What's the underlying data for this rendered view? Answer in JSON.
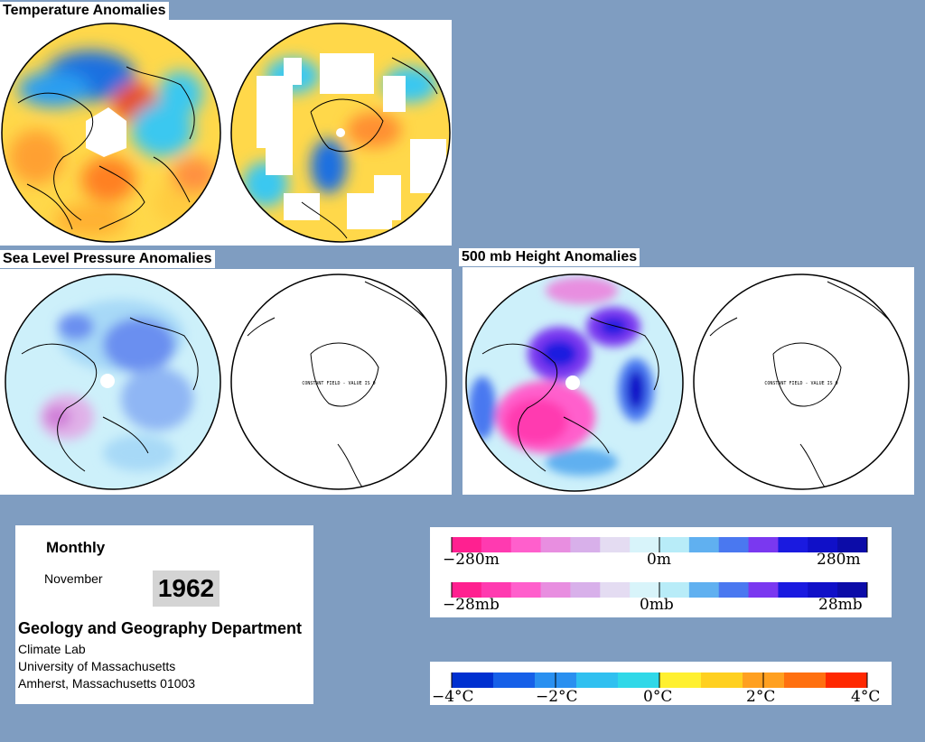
{
  "sections": {
    "temperature": {
      "title": "Temperature Anomalies"
    },
    "slp": {
      "title": "Sea Level Pressure Anomalies",
      "south_label": "CONSTANT FIELD - VALUE IS 0"
    },
    "height500": {
      "title": "500 mb Height Anomalies",
      "south_label": "CONSTANT FIELD - VALUE IS 0"
    }
  },
  "info": {
    "period": "Monthly",
    "month": "November",
    "year": "1962",
    "department": "Geology and Geography Department",
    "lab": "Climate Lab",
    "university": "University of Massachusetts",
    "address": "Amherst, Massachusetts 01003"
  },
  "legend_height": {
    "labels": [
      "−280m",
      "0m",
      "280m"
    ],
    "colors": [
      "#ff2090",
      "#ff3ab0",
      "#ff5fcc",
      "#e88ee0",
      "#d8b0ea",
      "#e4dcf2",
      "#d8f4fa",
      "#b8ecf8",
      "#60b0f0",
      "#4a78f0",
      "#7a38f0",
      "#1a1ae0",
      "#1010c8",
      "#0c0ca8"
    ]
  },
  "legend_pressure": {
    "labels": [
      "−28mb",
      "0mb",
      "28mb"
    ]
  },
  "legend_temp": {
    "labels": [
      "−4°C",
      "−2°C",
      "0°C",
      "2°C",
      "4°C"
    ],
    "colors": [
      "#0030d0",
      "#1660e8",
      "#2a90f0",
      "#30c0f0",
      "#30d8e8",
      "#fff030",
      "#ffd020",
      "#ffa020",
      "#ff7010",
      "#ff2800"
    ]
  }
}
